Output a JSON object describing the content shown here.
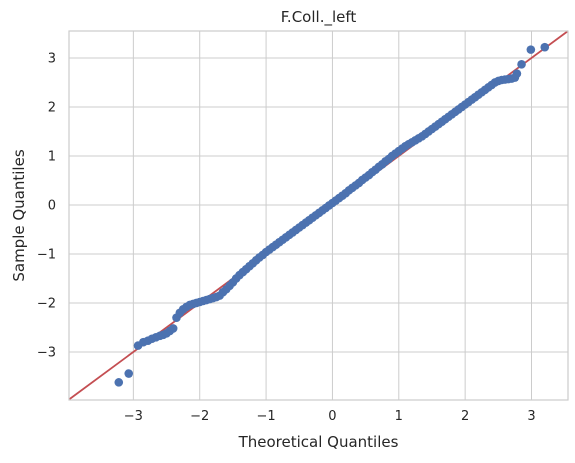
{
  "chart_data": {
    "type": "scatter",
    "title": "F.Coll._left",
    "xlabel": "Theoretical Quantiles",
    "ylabel": "Sample Quantiles",
    "xlim": [
      -3.97,
      3.55
    ],
    "ylim": [
      -3.98,
      3.55
    ],
    "xticks": [
      -3,
      -2,
      -1,
      0,
      1,
      2,
      3
    ],
    "yticks": [
      -3,
      -2,
      -1,
      0,
      1,
      2,
      3
    ],
    "grid": true,
    "point_color": "#4c72b0",
    "line_color": "#c44e52",
    "reference_line": {
      "slope": 1,
      "intercept": 0
    },
    "series": [
      {
        "points": [
          [
            -3.22,
            -3.62
          ],
          [
            -3.07,
            -3.44
          ],
          [
            -2.93,
            -2.87
          ],
          [
            -2.85,
            -2.8
          ],
          [
            -2.78,
            -2.77
          ],
          [
            -2.72,
            -2.73
          ],
          [
            -2.66,
            -2.7
          ],
          [
            -2.6,
            -2.67
          ],
          [
            -2.55,
            -2.65
          ],
          [
            -2.5,
            -2.62
          ],
          [
            -2.45,
            -2.57
          ],
          [
            -2.4,
            -2.52
          ],
          [
            -2.35,
            -2.3
          ],
          [
            -2.3,
            -2.2
          ],
          [
            -2.25,
            -2.13
          ],
          [
            -2.2,
            -2.08
          ],
          [
            -2.15,
            -2.04
          ],
          [
            -2.1,
            -2.02
          ],
          [
            -2.05,
            -2.0
          ],
          [
            -2.0,
            -1.98
          ],
          [
            -1.95,
            -1.96
          ],
          [
            -1.9,
            -1.94
          ],
          [
            -1.85,
            -1.92
          ],
          [
            -1.8,
            -1.9
          ],
          [
            -1.75,
            -1.88
          ],
          [
            -1.7,
            -1.85
          ],
          [
            -1.65,
            -1.78
          ],
          [
            -1.6,
            -1.72
          ],
          [
            -1.55,
            -1.65
          ],
          [
            -1.5,
            -1.58
          ],
          [
            -1.45,
            -1.5
          ],
          [
            -1.4,
            -1.43
          ],
          [
            -1.35,
            -1.37
          ],
          [
            -1.3,
            -1.31
          ],
          [
            -1.25,
            -1.25
          ],
          [
            -1.2,
            -1.19
          ],
          [
            -1.15,
            -1.13
          ],
          [
            -1.1,
            -1.07
          ],
          [
            -1.05,
            -1.02
          ],
          [
            -1.0,
            -0.96
          ],
          [
            -0.95,
            -0.91
          ],
          [
            -0.9,
            -0.86
          ],
          [
            -0.85,
            -0.81
          ],
          [
            -0.8,
            -0.76
          ],
          [
            -0.75,
            -0.71
          ],
          [
            -0.7,
            -0.66
          ],
          [
            -0.65,
            -0.61
          ],
          [
            -0.6,
            -0.56
          ],
          [
            -0.55,
            -0.51
          ],
          [
            -0.5,
            -0.46
          ],
          [
            -0.45,
            -0.41
          ],
          [
            -0.4,
            -0.36
          ],
          [
            -0.35,
            -0.31
          ],
          [
            -0.3,
            -0.26
          ],
          [
            -0.25,
            -0.21
          ],
          [
            -0.2,
            -0.16
          ],
          [
            -0.15,
            -0.11
          ],
          [
            -0.1,
            -0.06
          ],
          [
            -0.05,
            -0.01
          ],
          [
            0.0,
            0.04
          ],
          [
            0.05,
            0.09
          ],
          [
            0.1,
            0.14
          ],
          [
            0.15,
            0.19
          ],
          [
            0.2,
            0.24
          ],
          [
            0.25,
            0.3
          ],
          [
            0.3,
            0.35
          ],
          [
            0.35,
            0.4
          ],
          [
            0.4,
            0.45
          ],
          [
            0.45,
            0.51
          ],
          [
            0.5,
            0.56
          ],
          [
            0.55,
            0.61
          ],
          [
            0.6,
            0.67
          ],
          [
            0.65,
            0.72
          ],
          [
            0.7,
            0.78
          ],
          [
            0.75,
            0.83
          ],
          [
            0.8,
            0.89
          ],
          [
            0.85,
            0.94
          ],
          [
            0.9,
            1.0
          ],
          [
            0.95,
            1.05
          ],
          [
            1.0,
            1.1
          ],
          [
            1.05,
            1.15
          ],
          [
            1.1,
            1.2
          ],
          [
            1.15,
            1.24
          ],
          [
            1.2,
            1.28
          ],
          [
            1.25,
            1.32
          ],
          [
            1.3,
            1.36
          ],
          [
            1.35,
            1.4
          ],
          [
            1.4,
            1.45
          ],
          [
            1.45,
            1.5
          ],
          [
            1.5,
            1.55
          ],
          [
            1.55,
            1.6
          ],
          [
            1.6,
            1.65
          ],
          [
            1.65,
            1.7
          ],
          [
            1.7,
            1.75
          ],
          [
            1.75,
            1.8
          ],
          [
            1.8,
            1.85
          ],
          [
            1.85,
            1.9
          ],
          [
            1.9,
            1.95
          ],
          [
            1.95,
            2.0
          ],
          [
            2.0,
            2.05
          ],
          [
            2.05,
            2.1
          ],
          [
            2.1,
            2.15
          ],
          [
            2.15,
            2.2
          ],
          [
            2.2,
            2.25
          ],
          [
            2.25,
            2.3
          ],
          [
            2.3,
            2.35
          ],
          [
            2.35,
            2.4
          ],
          [
            2.4,
            2.45
          ],
          [
            2.45,
            2.5
          ],
          [
            2.5,
            2.53
          ],
          [
            2.55,
            2.55
          ],
          [
            2.6,
            2.56
          ],
          [
            2.65,
            2.57
          ],
          [
            2.7,
            2.58
          ],
          [
            2.75,
            2.6
          ],
          [
            2.78,
            2.68
          ],
          [
            2.85,
            2.87
          ],
          [
            2.99,
            3.17
          ],
          [
            3.2,
            3.22
          ]
        ]
      }
    ]
  }
}
